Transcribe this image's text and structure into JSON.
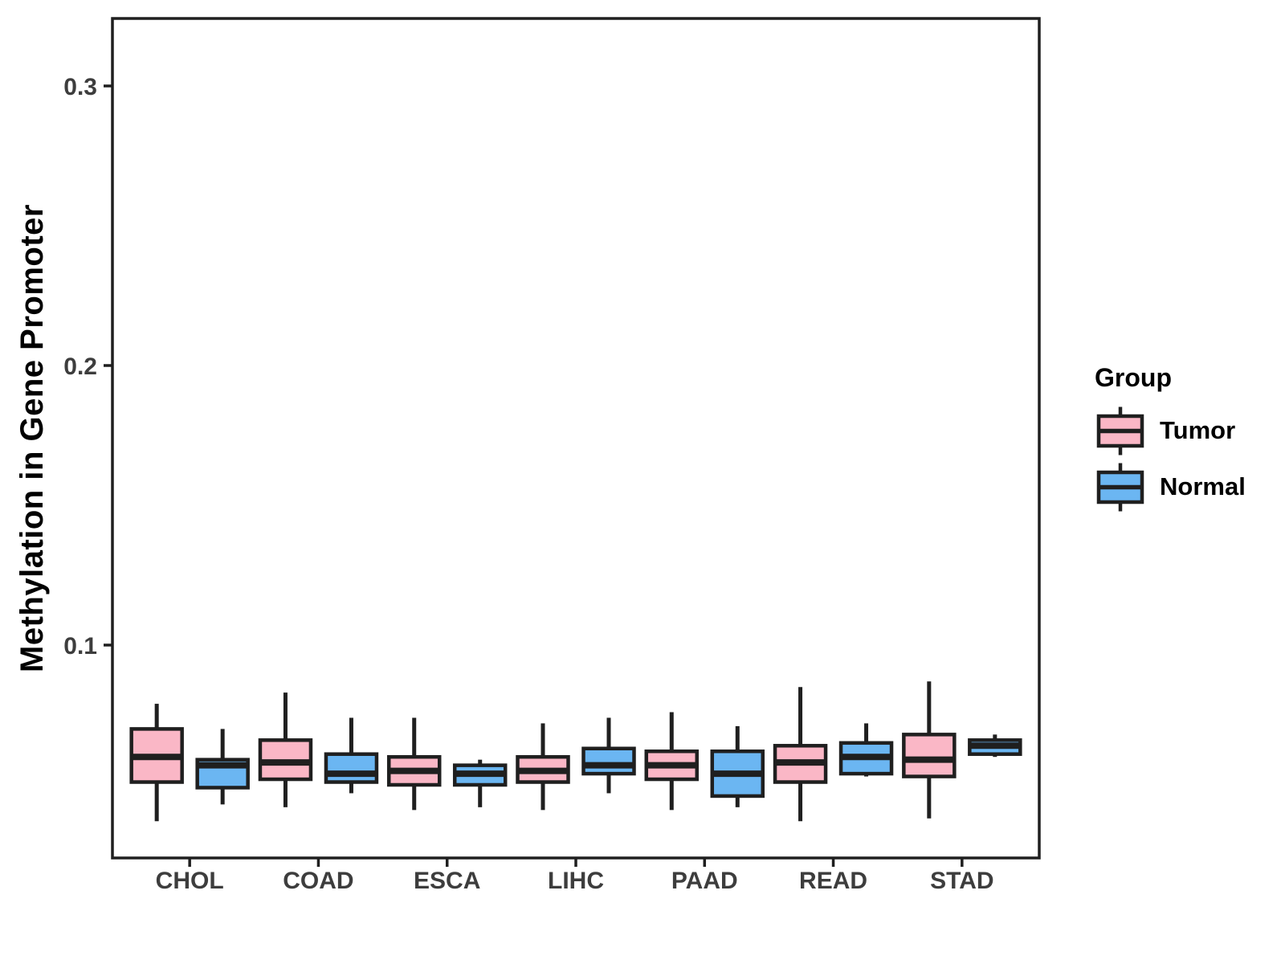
{
  "figure": {
    "background": "#ffffff",
    "stroke_color": "#1f1f1f",
    "tick_text_color": "#3d3d3d",
    "title_text_color": "#000000"
  },
  "legend": {
    "title": "Group"
  },
  "chart_data": {
    "type": "boxplot",
    "title": "",
    "xlabel": "",
    "ylabel": "Methylation in Gene Promoter",
    "categories": [
      "CHOL",
      "COAD",
      "ESCA",
      "LIHC",
      "PAAD",
      "READ",
      "STAD"
    ],
    "y_ticks": [
      {
        "value": 0.1,
        "label": "0.1"
      },
      {
        "value": 0.2,
        "label": "0.2"
      },
      {
        "value": 0.3,
        "label": "0.3"
      }
    ],
    "ylim": [
      0.024,
      0.324
    ],
    "grid": false,
    "legend_position": "right",
    "series": [
      {
        "name": "Tumor",
        "color": "#FAB7C6",
        "boxes": [
          {
            "category": "CHOL",
            "min": 0.037,
            "q1": 0.051,
            "median": 0.06,
            "q3": 0.07,
            "max": 0.079
          },
          {
            "category": "COAD",
            "min": 0.042,
            "q1": 0.052,
            "median": 0.058,
            "q3": 0.066,
            "max": 0.083
          },
          {
            "category": "ESCA",
            "min": 0.041,
            "q1": 0.05,
            "median": 0.055,
            "q3": 0.06,
            "max": 0.074
          },
          {
            "category": "LIHC",
            "min": 0.041,
            "q1": 0.051,
            "median": 0.055,
            "q3": 0.06,
            "max": 0.072
          },
          {
            "category": "PAAD",
            "min": 0.041,
            "q1": 0.052,
            "median": 0.057,
            "q3": 0.062,
            "max": 0.076
          },
          {
            "category": "READ",
            "min": 0.037,
            "q1": 0.051,
            "median": 0.058,
            "q3": 0.064,
            "max": 0.085
          },
          {
            "category": "STAD",
            "min": 0.038,
            "q1": 0.053,
            "median": 0.059,
            "q3": 0.068,
            "max": 0.087
          }
        ]
      },
      {
        "name": "Normal",
        "color": "#6BB6F2",
        "boxes": [
          {
            "category": "CHOL",
            "min": 0.043,
            "q1": 0.049,
            "median": 0.057,
            "q3": 0.059,
            "max": 0.07
          },
          {
            "category": "COAD",
            "min": 0.047,
            "q1": 0.051,
            "median": 0.054,
            "q3": 0.061,
            "max": 0.074
          },
          {
            "category": "ESCA",
            "min": 0.042,
            "q1": 0.05,
            "median": 0.054,
            "q3": 0.057,
            "max": 0.059
          },
          {
            "category": "LIHC",
            "min": 0.047,
            "q1": 0.054,
            "median": 0.057,
            "q3": 0.063,
            "max": 0.074
          },
          {
            "category": "PAAD",
            "min": 0.042,
            "q1": 0.046,
            "median": 0.054,
            "q3": 0.062,
            "max": 0.071
          },
          {
            "category": "READ",
            "min": 0.053,
            "q1": 0.054,
            "median": 0.06,
            "q3": 0.065,
            "max": 0.072
          },
          {
            "category": "STAD",
            "min": 0.06,
            "q1": 0.061,
            "median": 0.064,
            "q3": 0.066,
            "max": 0.068
          }
        ]
      }
    ]
  }
}
